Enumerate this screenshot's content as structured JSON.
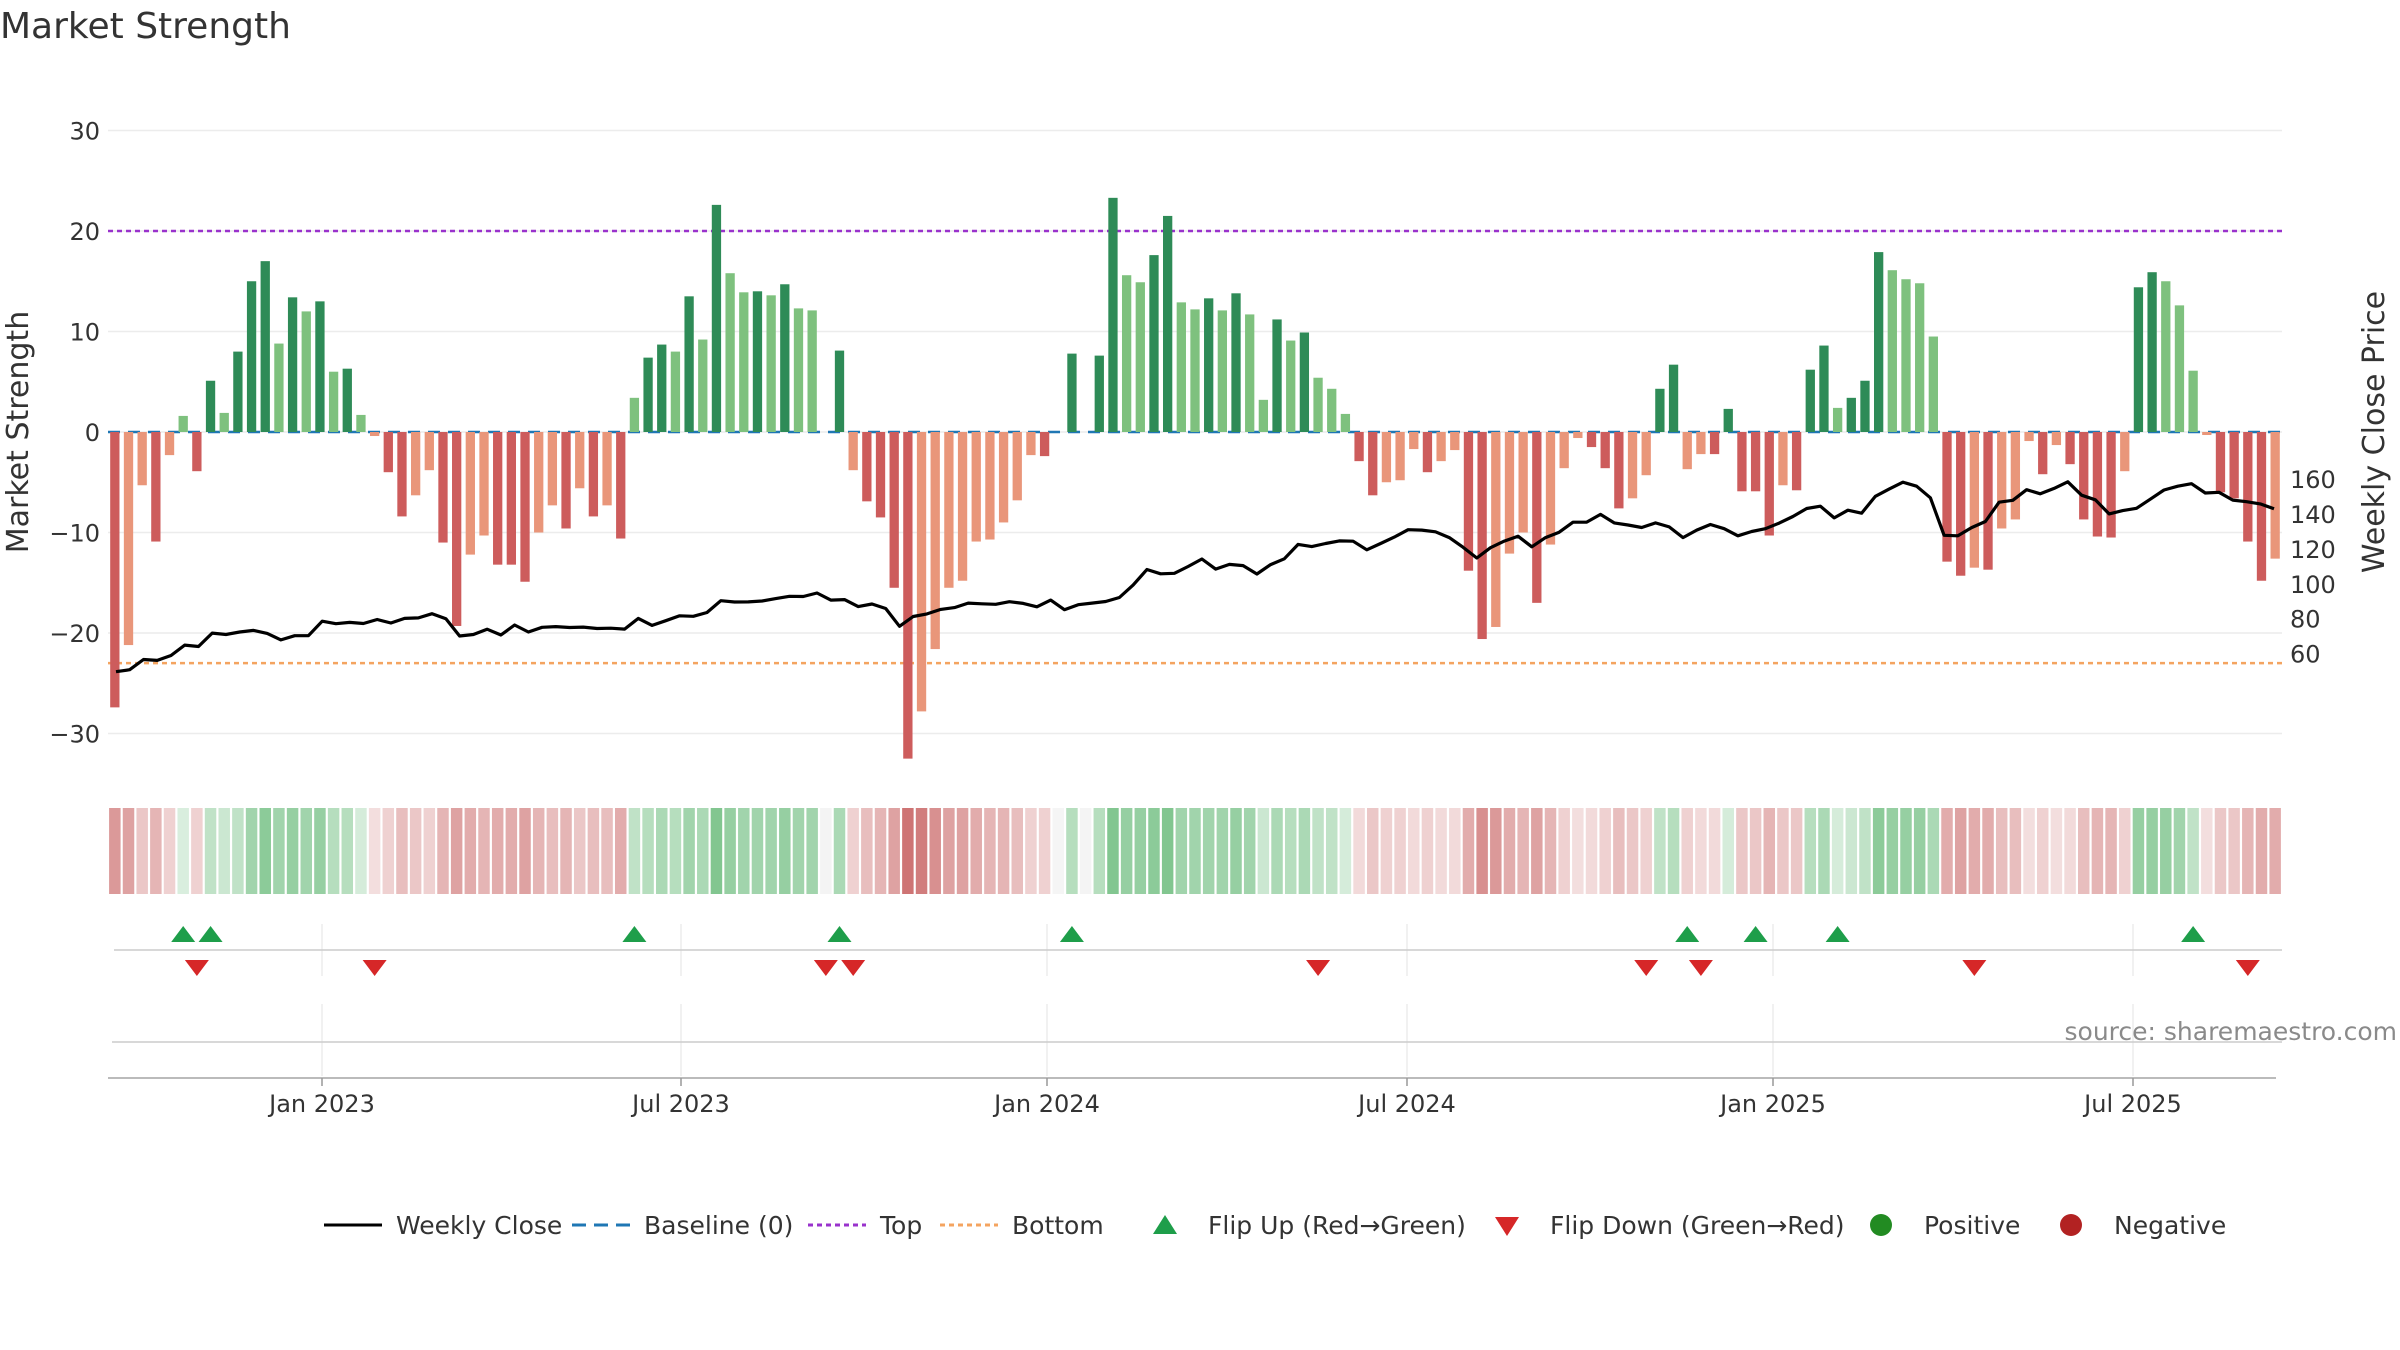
{
  "chart_data": {
    "type": "bar",
    "title": "Market Strength",
    "ylabel": "Market Strength",
    "y2label": "Weekly Close Price",
    "ylim": [
      -35,
      35
    ],
    "y2lim": [
      43,
      164
    ],
    "yticks": [
      30,
      20,
      10,
      0,
      -10,
      -20,
      -30
    ],
    "ytick_labels": [
      "30",
      "20",
      "10",
      "0",
      "−10",
      "−20",
      "−30"
    ],
    "y2ticks": [
      160,
      140,
      120,
      100,
      80,
      60
    ],
    "y2tick_labels": [
      "160",
      "140",
      "120",
      "100",
      "80",
      "60"
    ],
    "xticks": [
      "Jan 2023",
      "Jul 2023",
      "Jan 2024",
      "Jul 2024",
      "Jan 2025",
      "Jul 2025"
    ],
    "top_level": 20,
    "bottom_level": -23,
    "strength": [
      -27.4,
      -21.2,
      -5.3,
      -10.9,
      -2.3,
      1.6,
      -3.9,
      5.1,
      1.9,
      8.0,
      15.0,
      17.0,
      8.8,
      13.4,
      12.0,
      13.0,
      6.0,
      6.3,
      1.7,
      -0.4,
      -4.0,
      -8.4,
      -6.3,
      -3.8,
      -11.0,
      -19.3,
      -12.2,
      -10.3,
      -13.2,
      -13.2,
      -14.9,
      -10.0,
      -7.3,
      -9.6,
      -5.6,
      -8.4,
      -7.3,
      -10.6,
      3.4,
      7.4,
      8.7,
      8.0,
      13.5,
      9.2,
      22.6,
      15.8,
      13.9,
      14.0,
      13.6,
      14.7,
      12.3,
      12.1,
      0,
      8.1,
      -3.8,
      -6.9,
      -8.5,
      -15.5,
      -32.5,
      -27.8,
      -21.6,
      -15.5,
      -14.8,
      -10.9,
      -10.7,
      -9.0,
      -6.8,
      -2.3,
      -2.4,
      0,
      7.8,
      0,
      7.6,
      23.3,
      15.6,
      14.9,
      17.6,
      21.5,
      12.9,
      12.2,
      13.3,
      12.1,
      13.8,
      11.7,
      3.2,
      11.2,
      9.1,
      9.9,
      5.4,
      4.3,
      1.8,
      -2.9,
      -6.3,
      -5.0,
      -4.8,
      -1.7,
      -4.0,
      -2.9,
      -1.8,
      -13.8,
      -20.6,
      -19.4,
      -12.1,
      -10.0,
      -17.0,
      -11.2,
      -3.6,
      -0.6,
      -1.5,
      -3.6,
      -7.6,
      -6.6,
      -4.3,
      4.3,
      6.7,
      -3.7,
      -2.2,
      -2.2,
      2.3,
      -5.9,
      -5.9,
      -10.3,
      -5.3,
      -5.8,
      6.2,
      8.6,
      2.4,
      3.4,
      5.1,
      17.9,
      16.1,
      15.2,
      14.8,
      9.5,
      -12.9,
      -14.3,
      -13.5,
      -13.7,
      -9.6,
      -8.7,
      -0.9,
      -4.2,
      -1.3,
      -3.2,
      -8.7,
      -10.4,
      -10.5,
      -3.9,
      14.4,
      15.9,
      15.0,
      12.6,
      6.1,
      -0.3,
      -6.0,
      -6.6,
      -10.9,
      -14.8,
      -12.6
    ],
    "weekly_close": [
      49.5,
      50.7,
      56.5,
      56.0,
      58.8,
      64.8,
      64.0,
      71.7,
      70.9,
      72.3,
      73.2,
      71.5,
      67.8,
      70.2,
      70.2,
      78.5,
      77.1,
      77.8,
      77.2,
      79.5,
      77.5,
      80.1,
      80.4,
      82.8,
      79.9,
      70.0,
      70.9,
      73.9,
      70.6,
      76.3,
      72.3,
      75.0,
      75.4,
      74.9,
      75.1,
      74.3,
      74.5,
      74.0,
      80.1,
      76.1,
      78.8,
      81.6,
      81.3,
      83.5,
      90.3,
      89.5,
      89.6,
      90.1,
      91.5,
      92.8,
      92.7,
      94.7,
      90.6,
      90.9,
      86.9,
      88.4,
      85.8,
      75.6,
      81.2,
      82.7,
      85.3,
      86.3,
      88.9,
      88.5,
      88.2,
      89.7,
      88.7,
      86.8,
      90.6,
      85.1,
      88.0,
      88.9,
      89.8,
      92.1,
      99.2,
      108.2,
      105.7,
      106.0,
      109.9,
      114.2,
      108.4,
      111.1,
      110.4,
      105.6,
      111.0,
      114.3,
      122.6,
      121.3,
      123.1,
      124.6,
      124.4,
      119.5,
      123.1,
      126.8,
      131.0,
      130.8,
      129.8,
      126.5,
      121.0,
      114.8,
      120.7,
      124.5,
      127.3,
      121.2,
      126.5,
      129.6,
      135.3,
      135.4,
      139.8,
      134.9,
      133.7,
      132.3,
      134.9,
      132.6,
      126.5,
      130.8,
      134.0,
      131.6,
      127.5,
      130.0,
      131.6,
      134.8,
      138.6,
      143.2,
      144.5,
      137.8,
      142.2,
      140.5,
      150.2,
      154.3,
      158.3,
      156.0,
      149.3,
      127.8,
      127.5,
      132.2,
      135.7,
      146.8,
      147.9,
      154.0,
      151.6,
      154.7,
      158.5,
      150.8,
      148.2,
      140.1,
      142.0,
      143.3,
      148.5,
      153.8,
      156.0,
      157.4,
      152.1,
      152.5,
      148.0,
      147.1,
      145.8,
      143.0
    ],
    "heatmap_levels": [
      0.55,
      0.5,
      0.3,
      0.4,
      0.25,
      0.15,
      0.25,
      0.3,
      0.25,
      0.3,
      0.45,
      0.55,
      0.45,
      0.5,
      0.45,
      0.5,
      0.35,
      0.35,
      0.2,
      0.15,
      0.25,
      0.35,
      0.3,
      0.25,
      0.4,
      0.5,
      0.45,
      0.4,
      0.45,
      0.45,
      0.5,
      0.4,
      0.35,
      0.4,
      0.3,
      0.35,
      0.35,
      0.45,
      0.3,
      0.35,
      0.4,
      0.35,
      0.45,
      0.4,
      0.6,
      0.5,
      0.45,
      0.45,
      0.45,
      0.5,
      0.45,
      0.45,
      0.2,
      0.4,
      0.25,
      0.35,
      0.4,
      0.5,
      0.75,
      0.7,
      0.6,
      0.5,
      0.5,
      0.45,
      0.4,
      0.4,
      0.35,
      0.25,
      0.25,
      0.15,
      0.35,
      0.2,
      0.35,
      0.6,
      0.5,
      0.5,
      0.55,
      0.6,
      0.45,
      0.45,
      0.45,
      0.45,
      0.5,
      0.45,
      0.25,
      0.4,
      0.35,
      0.4,
      0.3,
      0.3,
      0.2,
      0.2,
      0.3,
      0.25,
      0.25,
      0.2,
      0.25,
      0.2,
      0.2,
      0.45,
      0.6,
      0.55,
      0.45,
      0.4,
      0.5,
      0.4,
      0.25,
      0.15,
      0.2,
      0.25,
      0.35,
      0.3,
      0.25,
      0.3,
      0.35,
      0.25,
      0.2,
      0.2,
      0.2,
      0.3,
      0.3,
      0.4,
      0.3,
      0.3,
      0.35,
      0.4,
      0.2,
      0.25,
      0.3,
      0.55,
      0.5,
      0.5,
      0.5,
      0.4,
      0.45,
      0.5,
      0.45,
      0.45,
      0.35,
      0.35,
      0.15,
      0.25,
      0.15,
      0.2,
      0.35,
      0.4,
      0.4,
      0.25,
      0.5,
      0.5,
      0.5,
      0.45,
      0.3,
      0.15,
      0.3,
      0.3,
      0.4,
      0.45,
      0.45
    ],
    "flip_up_weeks": [
      5,
      7,
      38,
      53,
      70,
      115,
      120,
      126,
      152
    ],
    "flip_down_weeks": [
      6,
      19,
      52,
      54,
      88,
      112,
      116,
      136,
      156
    ],
    "colors": {
      "strong_positive": "#2e8b57",
      "weak_positive": "#7ec17e",
      "strong_negative": "#cd5c5c",
      "weak_negative": "#e9967a",
      "price_line": "#000000",
      "baseline": "#1f77b4",
      "top_line": "#9932cc",
      "bottom_line": "#f4a460",
      "flip_up": "#1e9e4a",
      "flip_down": "#d62728",
      "positive_marker": "#228b22",
      "negative_marker": "#b22222"
    },
    "legend": {
      "placement": "bottom-center",
      "items": [
        {
          "label": "Weekly Close",
          "symbol": "line-solid"
        },
        {
          "label": "Baseline (0)",
          "symbol": "line-dashed"
        },
        {
          "label": "Top",
          "symbol": "line-dotted-purple"
        },
        {
          "label": "Bottom",
          "symbol": "line-dotted-orange"
        },
        {
          "label": "Flip Up (Red→Green)",
          "symbol": "triangle-up"
        },
        {
          "label": "Flip Down (Green→Red)",
          "symbol": "triangle-down"
        },
        {
          "label": "Positive",
          "symbol": "circle-green"
        },
        {
          "label": "Negative",
          "symbol": "circle-red"
        }
      ]
    },
    "grid": true,
    "source": "source: sharemaestro.com"
  }
}
